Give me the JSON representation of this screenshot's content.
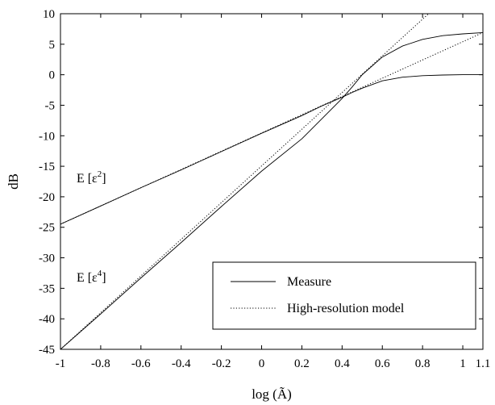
{
  "chart_data": {
    "type": "line",
    "xlabel": "log (Ã)",
    "ylabel": "dB",
    "xlim": [
      -1,
      1.1
    ],
    "ylim": [
      -45,
      10
    ],
    "xticks": [
      "-1",
      "-0.8",
      "-0.6",
      "-0.4",
      "-0.2",
      "0",
      "0.2",
      "0.4",
      "0.6",
      "0.8",
      "1",
      "1.1"
    ],
    "xtick_values": [
      -1,
      -0.8,
      -0.6,
      -0.4,
      -0.2,
      0,
      0.2,
      0.4,
      0.6,
      0.8,
      1,
      1.1
    ],
    "yticks": [
      "10",
      "5",
      "0",
      "-5",
      "-10",
      "-15",
      "-20",
      "-25",
      "-30",
      "-35",
      "-40",
      "-45"
    ],
    "ytick_values": [
      10,
      5,
      0,
      -5,
      -10,
      -15,
      -20,
      -25,
      -30,
      -35,
      -40,
      -45
    ],
    "grid": false,
    "legend": {
      "position": "bottom-right",
      "entries": [
        {
          "label": "Measure",
          "style": "solid"
        },
        {
          "label": "High-resolution model",
          "style": "dotted"
        }
      ]
    },
    "annotations": [
      {
        "base": "E [ε",
        "sup": "2",
        "tail": "]",
        "x": -0.92,
        "y": -17.6
      },
      {
        "base": "E [ε",
        "sup": "4",
        "tail": "]",
        "x": -0.92,
        "y": -33.9
      }
    ],
    "series": [
      {
        "style": "solid",
        "x": [
          -1,
          -0.8,
          -0.6,
          -0.4,
          -0.2,
          0,
          0.2,
          0.3,
          0.4,
          0.45,
          0.5,
          0.6,
          0.7,
          0.8,
          0.9,
          1,
          1.1
        ],
        "y": [
          -24.5,
          -21.5,
          -18.5,
          -15.6,
          -12.6,
          -9.6,
          -6.7,
          -5.1,
          -3.7,
          -2.9,
          -2.2,
          -1.0,
          -0.4,
          -0.15,
          -0.05,
          0,
          0
        ]
      },
      {
        "style": "solid",
        "x": [
          -1,
          -0.8,
          -0.6,
          -0.4,
          -0.2,
          0,
          0.2,
          0.3,
          0.4,
          0.45,
          0.5,
          0.6,
          0.7,
          0.8,
          0.9,
          1,
          1.1
        ],
        "y": [
          -45,
          -39.2,
          -33.3,
          -27.5,
          -21.6,
          -15.8,
          -10.5,
          -7.2,
          -3.9,
          -2.0,
          0.0,
          2.9,
          4.7,
          5.8,
          6.4,
          6.7,
          6.9
        ]
      },
      {
        "style": "dotted",
        "x": [
          -1,
          1.1
        ],
        "y": [
          -24.5,
          6.9
        ]
      },
      {
        "style": "dotted",
        "x": [
          -1,
          0.83
        ],
        "y": [
          -45,
          10
        ]
      }
    ]
  }
}
